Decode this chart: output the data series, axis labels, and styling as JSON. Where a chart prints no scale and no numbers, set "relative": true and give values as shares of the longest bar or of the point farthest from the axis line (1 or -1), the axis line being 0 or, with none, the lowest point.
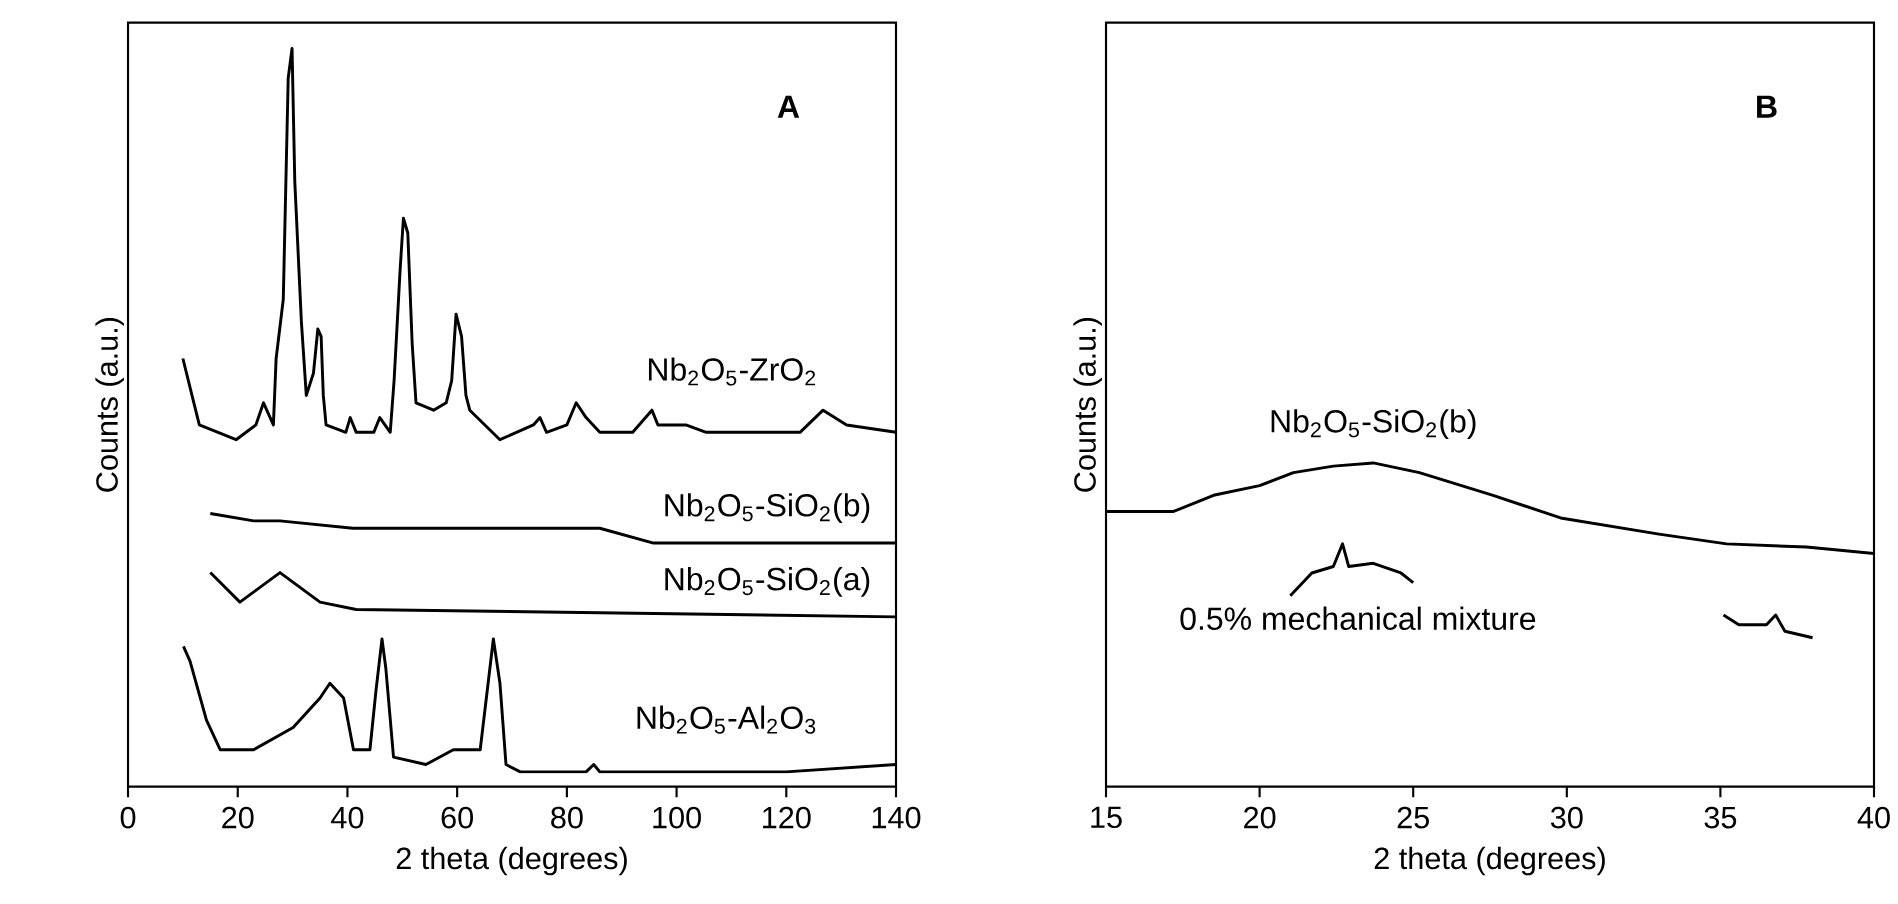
{
  "chart_data": [
    {
      "type": "line",
      "title": "A",
      "xlabel": "2 theta (degrees)",
      "ylabel": "Counts (a.u.)",
      "relative": true,
      "tick_labels": "x",
      "xlim": [
        0,
        140
      ],
      "xticks": [
        0,
        20,
        40,
        60,
        80,
        100,
        120,
        140
      ],
      "grid": false,
      "legend": false,
      "marker": "none",
      "line_style": "solid",
      "series": [
        {
          "name": "Nb$_{2}$O$_{5}$-ZrO$_{2}$",
          "color": "#000000",
          "x": [
            10,
            12,
            13,
            19.7,
            23.3,
            24.7,
            26.5,
            27,
            28.3,
            29.2,
            29.9,
            30.4,
            31.6,
            32.5,
            33.8,
            34.6,
            35.2,
            35.6,
            36.1,
            39.7,
            40.5,
            41.6,
            44.8,
            45.9,
            47.8,
            48.5,
            49.6,
            50.2,
            51,
            51.8,
            52.5,
            55.7,
            58,
            59,
            59.8,
            60.8,
            61.6,
            62.3,
            67.8,
            73.9,
            75.1,
            76.3,
            80,
            81.7,
            83.5,
            86,
            92,
            95.5,
            96.6,
            101.7,
            105.4,
            122.5,
            126.7,
            131,
            140
          ],
          "values": [
            0.58,
            0.52,
            0.49,
            0.47,
            0.49,
            0.52,
            0.49,
            0.58,
            0.66,
            0.96,
            1.0,
            0.82,
            0.63,
            0.53,
            0.56,
            0.62,
            0.61,
            0.53,
            0.49,
            0.48,
            0.5,
            0.48,
            0.48,
            0.5,
            0.48,
            0.55,
            0.7,
            0.77,
            0.75,
            0.6,
            0.52,
            0.51,
            0.52,
            0.55,
            0.64,
            0.61,
            0.53,
            0.51,
            0.47,
            0.49,
            0.5,
            0.48,
            0.49,
            0.52,
            0.5,
            0.48,
            0.48,
            0.51,
            0.49,
            0.49,
            0.48,
            0.48,
            0.51,
            0.49,
            0.48
          ]
        },
        {
          "name": "Nb$_{2}$O$_{5}$-SiO$_{2}$(b)",
          "color": "#000000",
          "x": [
            15,
            22.9,
            27.7,
            41,
            86,
            95.8,
            140
          ],
          "values": [
            0.37,
            0.36,
            0.36,
            0.35,
            0.35,
            0.33,
            0.33
          ]
        },
        {
          "name": "Nb$_{2}$O$_{5}$-SiO$_{2}$(a)",
          "color": "#000000",
          "x": [
            15,
            20.4,
            27.7,
            35,
            41.6,
            140
          ],
          "values": [
            0.29,
            0.25,
            0.29,
            0.25,
            0.24,
            0.23
          ]
        },
        {
          "name": "Nb$_{2}$O$_{5}$-Al$_{2}$O$_{3}$",
          "color": "#000000",
          "x": [
            10.1,
            11.3,
            14.3,
            16.8,
            22.9,
            30.1,
            35,
            36.8,
            39.3,
            41.1,
            44.1,
            45.2,
            46.3,
            47,
            48.4,
            54.3,
            59.3,
            64.2,
            66.6,
            67.8,
            68.9,
            71.5,
            83.5,
            84.9,
            86,
            120,
            140
          ],
          "values": [
            0.19,
            0.17,
            0.09,
            0.05,
            0.05,
            0.08,
            0.12,
            0.14,
            0.12,
            0.05,
            0.05,
            0.13,
            0.2,
            0.16,
            0.04,
            0.03,
            0.05,
            0.05,
            0.2,
            0.14,
            0.03,
            0.02,
            0.02,
            0.03,
            0.02,
            0.02,
            0.03
          ]
        }
      ]
    },
    {
      "type": "line",
      "title": "B",
      "xlabel": "2 theta (degrees)",
      "ylabel": "Counts (a.u.)",
      "relative": true,
      "tick_labels": "x",
      "xlim": [
        15,
        40
      ],
      "xticks": [
        15,
        20,
        25,
        30,
        35,
        40
      ],
      "grid": false,
      "legend": false,
      "marker": "none",
      "line_style": "solid",
      "series": [
        {
          "name": "Nb$_{2}$O$_{5}$-SiO$_{2}$(b)",
          "color": "#000000",
          "x": [
            15,
            17.2,
            18.5,
            20,
            21.1,
            22.4,
            23.7,
            25.2,
            27.6,
            29.8,
            33,
            35.2,
            37.8,
            40
          ],
          "values": [
            0.85,
            0.85,
            0.9,
            0.93,
            0.97,
            0.99,
            1.0,
            0.97,
            0.9,
            0.83,
            0.78,
            0.75,
            0.74,
            0.72
          ]
        },
        {
          "name": "0.5% mechanical mixture",
          "color": "#000000",
          "x": [
            21,
            21.7,
            22.4,
            22.7,
            22.9,
            23.7,
            24.6,
            25,
            30,
            35.1,
            35.6,
            36.5,
            36.8,
            37.1,
            38
          ],
          "values": [
            0.59,
            0.66,
            0.68,
            0.75,
            0.68,
            0.69,
            0.66,
            0.63,
            null,
            0.53,
            0.5,
            0.5,
            0.53,
            0.48,
            0.46
          ]
        }
      ]
    }
  ]
}
